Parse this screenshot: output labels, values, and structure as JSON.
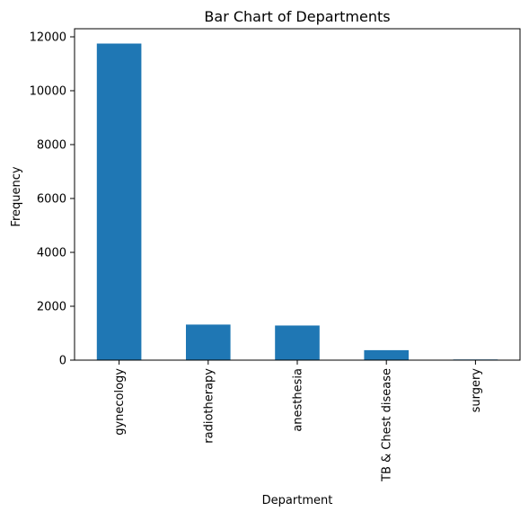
{
  "chart_data": {
    "type": "bar",
    "title": "Bar Chart of Departments",
    "xlabel": "Department",
    "ylabel": "Frequency",
    "categories": [
      "gynecology",
      "radiotherapy",
      "anesthesia",
      "TB & Chest disease",
      "surgery"
    ],
    "values": [
      11750,
      1320,
      1285,
      370,
      25
    ],
    "ylim": [
      0,
      12300
    ],
    "yticks": [
      0,
      2000,
      4000,
      6000,
      8000,
      10000,
      12000
    ],
    "grid": false,
    "legend": "none",
    "bar_color": "#1f77b4"
  }
}
